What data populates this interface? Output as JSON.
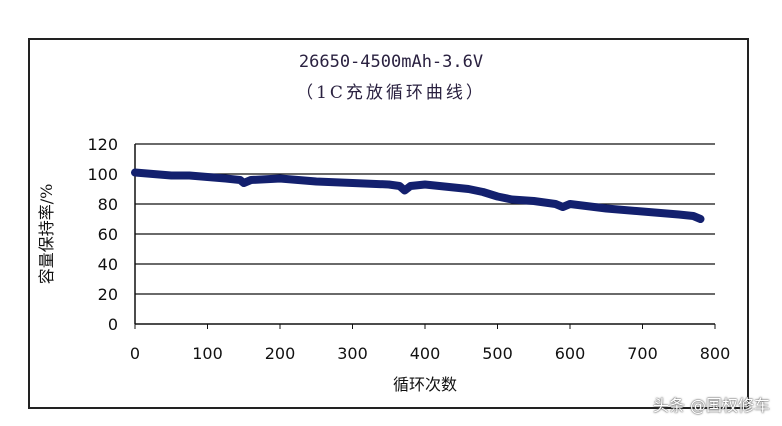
{
  "chart_data": {
    "type": "line",
    "title": "26650-4500mAh-3.6V",
    "subtitle": "（1C充放循环曲线）",
    "xlabel": "循环次数",
    "ylabel": "容量保持率/%",
    "xlim": [
      0,
      800
    ],
    "ylim": [
      0,
      120
    ],
    "xticks": [
      0,
      100,
      200,
      300,
      400,
      500,
      600,
      700,
      800
    ],
    "yticks": [
      0,
      20,
      40,
      60,
      80,
      100,
      120
    ],
    "grid": "horizontal",
    "line_color": "#13206e",
    "x": [
      0,
      25,
      50,
      75,
      100,
      125,
      145,
      150,
      160,
      200,
      250,
      300,
      350,
      365,
      372,
      380,
      400,
      420,
      440,
      460,
      480,
      500,
      520,
      550,
      580,
      590,
      600,
      650,
      700,
      750,
      770,
      780
    ],
    "y": [
      101,
      100,
      99,
      99,
      98,
      97,
      96,
      94,
      96,
      97,
      95,
      94,
      93,
      92,
      89,
      92,
      93,
      92,
      91,
      90,
      88,
      85,
      83,
      82,
      80,
      78,
      80,
      77,
      75,
      73,
      72,
      70
    ]
  },
  "watermark": "头条 @国权修车"
}
